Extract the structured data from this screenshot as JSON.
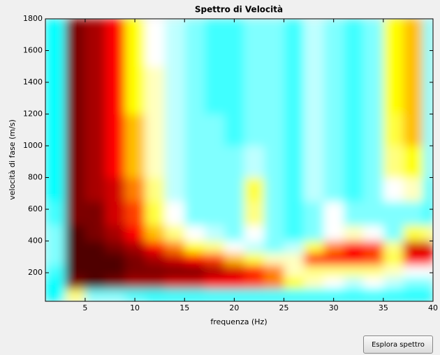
{
  "chart_data": {
    "type": "heatmap",
    "title": "Spettro di Velocità",
    "x_label": "frequenza (Hz)",
    "y_label": "velocità di fase (m/s)",
    "xlim": [
      1,
      40
    ],
    "ylim": [
      20,
      1800
    ],
    "xticks": [
      5,
      10,
      15,
      20,
      25,
      30,
      35,
      40
    ],
    "yticks": [
      200,
      400,
      600,
      800,
      1000,
      1200,
      1400,
      1600,
      1800
    ],
    "x_edges": [
      1,
      3,
      5,
      7,
      9,
      11,
      13,
      15,
      17,
      19,
      21,
      23,
      25,
      27,
      29,
      31,
      33,
      35,
      37,
      39,
      40
    ],
    "y_edges": [
      20,
      100,
      175,
      250,
      325,
      400,
      500,
      650,
      800,
      1000,
      1200,
      1500,
      1800
    ],
    "colorscale": [
      "#0000b0",
      "#00ffff",
      "#ffffff",
      "#ffff00",
      "#ff0000",
      "#500000"
    ],
    "z": [
      [
        0.2,
        0.5,
        0.3,
        0.3,
        0.25,
        0.2,
        0.2,
        0.2,
        0.2,
        0.2,
        0.2,
        0.2,
        0.2,
        0.2,
        0.2,
        0.2,
        0.2,
        0.2,
        0.2,
        0.2
      ],
      [
        0.2,
        0.95,
        1.0,
        0.95,
        0.9,
        0.9,
        0.85,
        0.85,
        0.8,
        0.8,
        0.75,
        0.7,
        0.6,
        0.45,
        0.4,
        0.35,
        0.4,
        0.35,
        0.3,
        0.3
      ],
      [
        0.25,
        1.0,
        1.0,
        1.0,
        0.95,
        0.95,
        0.95,
        0.95,
        0.9,
        0.85,
        0.8,
        0.7,
        0.45,
        0.5,
        0.5,
        0.5,
        0.5,
        0.45,
        0.4,
        0.4
      ],
      [
        0.3,
        1.0,
        1.0,
        1.0,
        0.95,
        0.9,
        0.85,
        0.8,
        0.75,
        0.65,
        0.55,
        0.45,
        0.45,
        0.8,
        0.8,
        0.8,
        0.75,
        0.55,
        0.8,
        0.8
      ],
      [
        0.3,
        1.0,
        1.0,
        0.95,
        0.9,
        0.8,
        0.7,
        0.6,
        0.5,
        0.4,
        0.35,
        0.3,
        0.35,
        0.55,
        0.7,
        0.8,
        0.75,
        0.5,
        0.85,
        0.85
      ],
      [
        0.3,
        1.0,
        0.95,
        0.9,
        0.8,
        0.65,
        0.5,
        0.4,
        0.35,
        0.3,
        0.4,
        0.3,
        0.25,
        0.3,
        0.4,
        0.45,
        0.4,
        0.3,
        0.55,
        0.5
      ],
      [
        0.25,
        0.95,
        0.95,
        0.85,
        0.75,
        0.55,
        0.4,
        0.3,
        0.3,
        0.3,
        0.5,
        0.3,
        0.25,
        0.3,
        0.4,
        0.3,
        0.3,
        0.3,
        0.3,
        0.25
      ],
      [
        0.2,
        0.95,
        0.9,
        0.85,
        0.7,
        0.5,
        0.35,
        0.3,
        0.3,
        0.3,
        0.55,
        0.3,
        0.25,
        0.35,
        0.3,
        0.25,
        0.3,
        0.4,
        0.45,
        0.25
      ],
      [
        0.2,
        0.95,
        0.9,
        0.8,
        0.65,
        0.45,
        0.35,
        0.3,
        0.3,
        0.3,
        0.35,
        0.3,
        0.25,
        0.35,
        0.3,
        0.25,
        0.3,
        0.5,
        0.6,
        0.3
      ],
      [
        0.2,
        0.95,
        0.9,
        0.8,
        0.65,
        0.45,
        0.35,
        0.3,
        0.3,
        0.25,
        0.3,
        0.3,
        0.25,
        0.35,
        0.3,
        0.25,
        0.3,
        0.55,
        0.65,
        0.3
      ],
      [
        0.2,
        0.95,
        0.9,
        0.8,
        0.6,
        0.45,
        0.35,
        0.3,
        0.25,
        0.25,
        0.3,
        0.3,
        0.25,
        0.35,
        0.3,
        0.25,
        0.3,
        0.6,
        0.65,
        0.3
      ],
      [
        0.2,
        0.95,
        0.9,
        0.8,
        0.6,
        0.4,
        0.35,
        0.3,
        0.25,
        0.25,
        0.3,
        0.3,
        0.25,
        0.35,
        0.3,
        0.25,
        0.3,
        0.6,
        0.65,
        0.3
      ]
    ]
  },
  "controls": {
    "button": "Esplora spettro"
  }
}
